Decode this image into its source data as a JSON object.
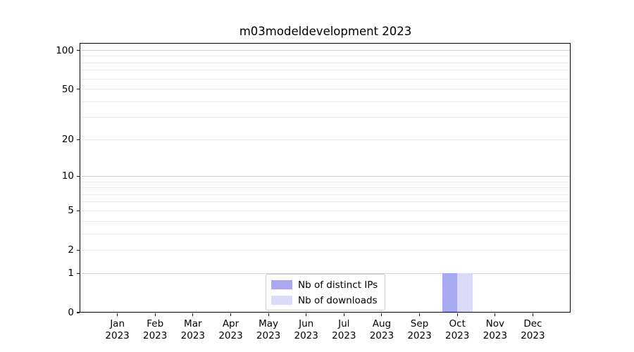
{
  "title": "m03modeldevelopment 2023",
  "chart_data": {
    "type": "bar",
    "title": "m03modeldevelopment 2023",
    "categories": [
      "Jan 2023",
      "Feb 2023",
      "Mar 2023",
      "Apr 2023",
      "May 2023",
      "Jun 2023",
      "Jul 2023",
      "Aug 2023",
      "Sep 2023",
      "Oct 2023",
      "Nov 2023",
      "Dec 2023"
    ],
    "series": [
      {
        "name": "Nb of distinct IPs",
        "color": "#a8a8f0",
        "values": [
          0,
          0,
          0,
          0,
          0,
          0,
          0,
          0,
          0,
          1,
          0,
          0
        ]
      },
      {
        "name": "Nb of downloads",
        "color": "#dadaf8",
        "values": [
          0,
          0,
          0,
          0,
          0,
          0,
          0,
          0,
          0,
          1,
          0,
          0
        ]
      }
    ],
    "xlabel": "",
    "ylabel": "",
    "yscale": "log1p",
    "ylim": [
      0,
      114
    ],
    "y_ticks_labeled": [
      0,
      1,
      2,
      5,
      10,
      20,
      50,
      100
    ],
    "y_ticks_major": [
      1,
      10,
      100
    ],
    "y_ticks_minor": [
      2,
      3,
      4,
      5,
      6,
      7,
      8,
      9,
      20,
      30,
      40,
      50,
      60,
      70,
      80,
      90
    ],
    "grid": "horizontal",
    "legend_position": "lower center",
    "colors": {
      "major_grid": "#d3d3d3",
      "minor_grid": "#ececec",
      "axis": "#000000",
      "text": "#000000",
      "legend_border": "#cccccc",
      "background": "#ffffff"
    }
  }
}
